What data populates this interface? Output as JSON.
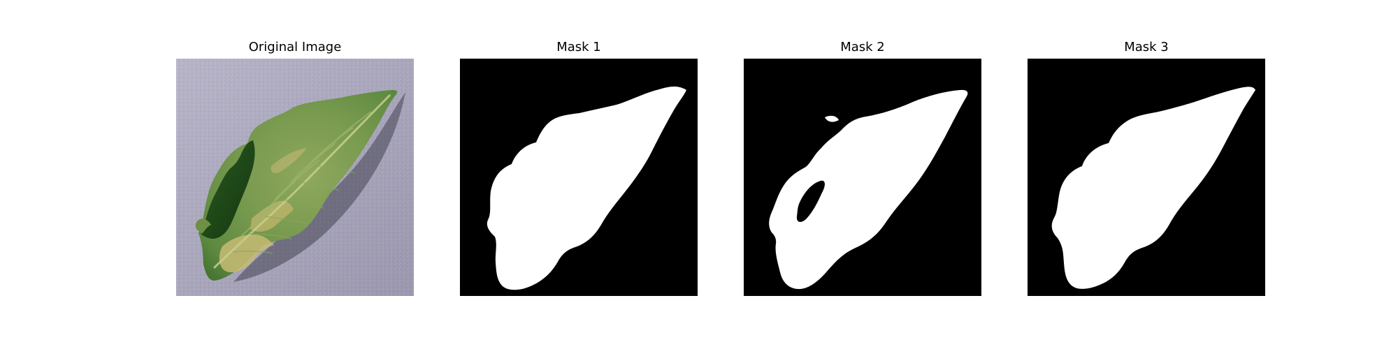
{
  "figure": {
    "panels": [
      {
        "title": "Original Image"
      },
      {
        "title": "Mask 1"
      },
      {
        "title": "Mask 2"
      },
      {
        "title": "Mask 3"
      }
    ]
  },
  "colors": {
    "background": "#ffffff",
    "mask_background": "#000000",
    "mask_foreground": "#ffffff",
    "surface": "#a9a6bc",
    "leaf_light": "#7f9f55",
    "leaf_dark": "#1f4a17",
    "leaf_yellow": "#c4b76c",
    "shadow": "#2f2f3b"
  }
}
